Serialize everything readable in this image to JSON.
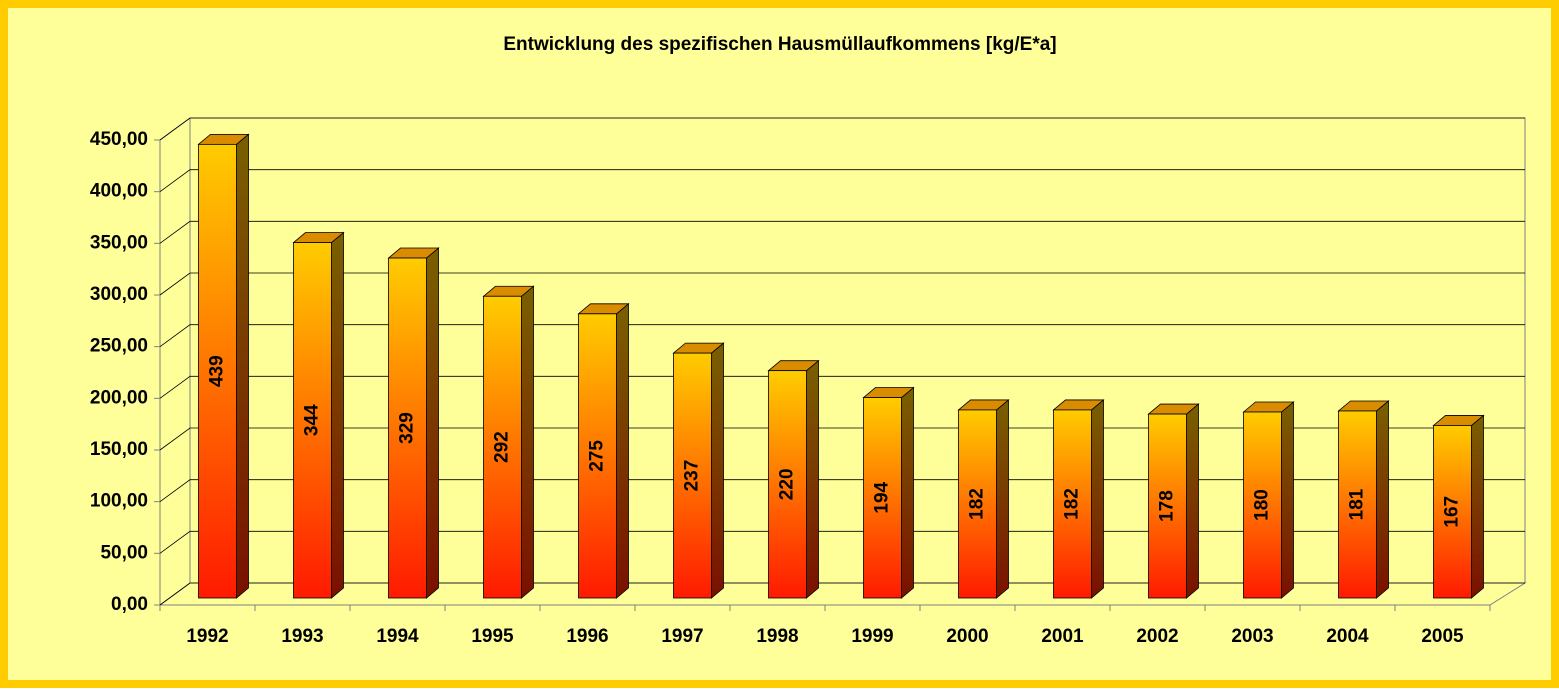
{
  "chart_data": {
    "type": "bar3d",
    "title": "Entwicklung des spezifischen Hausmüllaufkommens [kg/E*a]",
    "categories": [
      "1992",
      "1993",
      "1994",
      "1995",
      "1996",
      "1997",
      "1998",
      "1999",
      "2000",
      "2001",
      "2002",
      "2003",
      "2004",
      "2005"
    ],
    "values": [
      439,
      344,
      329,
      292,
      275,
      237,
      220,
      194,
      182,
      182,
      178,
      180,
      181,
      167
    ],
    "ylim": [
      0,
      450
    ],
    "yticks": [
      {
        "value": 0,
        "label": "0,00"
      },
      {
        "value": 50,
        "label": "50,00"
      },
      {
        "value": 100,
        "label": "100,00"
      },
      {
        "value": 150,
        "label": "150,00"
      },
      {
        "value": 200,
        "label": "200,00"
      },
      {
        "value": 250,
        "label": "250,00"
      },
      {
        "value": 300,
        "label": "300,00"
      },
      {
        "value": 350,
        "label": "350,00"
      },
      {
        "value": 400,
        "label": "400,00"
      },
      {
        "value": 450,
        "label": "450,00"
      }
    ],
    "grid": true,
    "color_top": "#ffcc00",
    "color_bottom": "#ff1a00"
  }
}
